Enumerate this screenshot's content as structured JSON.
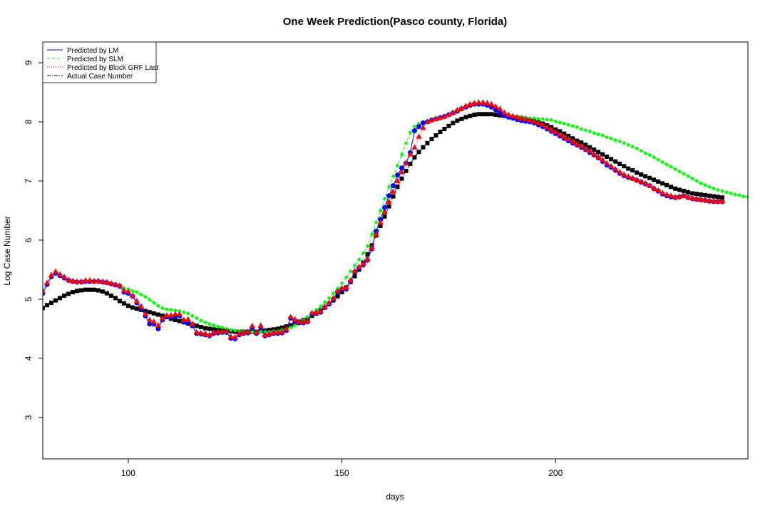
{
  "chart_data": {
    "type": "scatter",
    "title": "One Week Prediction(Pasco county, Florida)",
    "xlabel": "days",
    "ylabel": "Log Case Number",
    "xlim": [
      80,
      245
    ],
    "ylim": [
      2.3,
      9.35
    ],
    "xticks": [
      100,
      150,
      200
    ],
    "yticks": [
      3,
      4,
      5,
      6,
      7,
      8,
      9
    ],
    "grid": false,
    "legend_position": "top-left",
    "colors": {
      "lm": "#0000ff",
      "slm": "#00ff00",
      "grf": "#ff0000",
      "actual": "#000000"
    },
    "legend": [
      {
        "label": "Predicted by LM",
        "color": "#0000ff",
        "line": "solid"
      },
      {
        "label": "Predicted by SLM",
        "color": "#00ff00",
        "line": "dashed"
      },
      {
        "label": "Predicted by Block GRF Last",
        "color": "#ff0000",
        "line": "dotted"
      },
      {
        "label": "Actual Case Number",
        "color": "#000000",
        "line": "dotdash"
      }
    ],
    "x_start": 80,
    "series": [
      {
        "name": "Actual Case Number",
        "marker": "square",
        "color": "#000000",
        "y": [
          4.85,
          4.9,
          4.94,
          4.98,
          5.02,
          5.06,
          5.09,
          5.12,
          5.14,
          5.15,
          5.16,
          5.16,
          5.16,
          5.15,
          5.13,
          5.1,
          5.06,
          5.02,
          4.97,
          4.93,
          4.89,
          4.86,
          4.84,
          4.82,
          4.8,
          4.78,
          4.76,
          4.74,
          4.72,
          4.7,
          4.67,
          4.65,
          4.63,
          4.61,
          4.59,
          4.57,
          4.55,
          4.53,
          4.51,
          4.5,
          4.49,
          4.48,
          4.47,
          4.46,
          4.46,
          4.45,
          4.45,
          4.45,
          4.45,
          4.45,
          4.45,
          4.46,
          4.47,
          4.48,
          4.49,
          4.5,
          4.52,
          4.54,
          4.56,
          4.59,
          4.62,
          4.65,
          4.68,
          4.72,
          4.76,
          4.81,
          4.86,
          4.92,
          4.98,
          5.05,
          5.12,
          5.2,
          5.29,
          5.39,
          5.5,
          5.62,
          5.76,
          5.91,
          6.08,
          6.24,
          6.4,
          6.57,
          6.74,
          6.9,
          7.04,
          7.17,
          7.29,
          7.4,
          7.49,
          7.57,
          7.64,
          7.71,
          7.77,
          7.83,
          7.88,
          7.93,
          7.98,
          8.02,
          8.05,
          8.08,
          8.1,
          8.12,
          8.13,
          8.13,
          8.13,
          8.13,
          8.12,
          8.11,
          8.1,
          8.09,
          8.08,
          8.07,
          8.06,
          8.05,
          8.03,
          8.01,
          7.99,
          7.97,
          7.94,
          7.91,
          7.87,
          7.84,
          7.8,
          7.76,
          7.72,
          7.68,
          7.65,
          7.61,
          7.57,
          7.53,
          7.49,
          7.45,
          7.41,
          7.37,
          7.33,
          7.29,
          7.25,
          7.21,
          7.18,
          7.14,
          7.11,
          7.08,
          7.05,
          7.02,
          6.99,
          6.96,
          6.93,
          6.9,
          6.87,
          6.85,
          6.83,
          6.81,
          6.79,
          6.78,
          6.77,
          6.76,
          6.75,
          6.74,
          6.73,
          6.72
        ]
      },
      {
        "name": "Predicted by SLM",
        "marker": "diamond",
        "color": "#00ff00",
        "y": [
          5.1,
          5.25,
          5.38,
          5.44,
          5.4,
          5.36,
          5.32,
          5.3,
          5.29,
          5.29,
          5.3,
          5.3,
          5.3,
          5.3,
          5.29,
          5.28,
          5.26,
          5.24,
          5.22,
          5.19,
          5.17,
          5.14,
          5.12,
          5.08,
          5.04,
          4.99,
          4.94,
          4.89,
          4.85,
          4.83,
          4.82,
          4.81,
          4.8,
          4.78,
          4.76,
          4.72,
          4.68,
          4.64,
          4.61,
          4.58,
          4.56,
          4.54,
          4.52,
          4.5,
          4.48,
          4.47,
          4.46,
          4.46,
          4.45,
          4.45,
          4.45,
          4.45,
          4.45,
          4.45,
          4.46,
          4.46,
          4.48,
          4.5,
          4.52,
          4.56,
          4.6,
          4.65,
          4.7,
          4.76,
          4.82,
          4.88,
          4.95,
          5.02,
          5.1,
          5.18,
          5.27,
          5.37,
          5.47,
          5.57,
          5.67,
          5.78,
          5.9,
          6.1,
          6.3,
          6.5,
          6.7,
          6.9,
          7.08,
          7.26,
          7.45,
          7.64,
          7.82,
          7.92,
          7.97,
          8.0,
          8.02,
          8.03,
          8.05,
          8.07,
          8.09,
          8.12,
          8.15,
          8.18,
          8.22,
          8.25,
          8.28,
          8.29,
          8.3,
          8.3,
          8.28,
          8.25,
          8.2,
          8.15,
          8.11,
          8.1,
          8.1,
          8.09,
          8.08,
          8.07,
          8.06,
          8.06,
          8.05,
          8.05,
          8.04,
          8.03,
          8.01,
          7.99,
          7.97,
          7.95,
          7.93,
          7.91,
          7.88,
          7.86,
          7.84,
          7.81,
          7.79,
          7.77,
          7.74,
          7.72,
          7.69,
          7.67,
          7.64,
          7.61,
          7.58,
          7.55,
          7.51,
          7.47,
          7.44,
          7.4,
          7.36,
          7.32,
          7.28,
          7.24,
          7.2,
          7.16,
          7.12,
          7.08,
          7.04,
          7.0,
          6.96,
          6.93,
          6.9,
          6.87,
          6.85,
          6.83,
          6.81,
          6.79,
          6.77,
          6.76,
          6.74,
          6.73
        ]
      },
      {
        "name": "Predicted by LM",
        "marker": "circle",
        "color": "#0000ff",
        "y": [
          5.1,
          5.25,
          5.38,
          5.44,
          5.4,
          5.36,
          5.32,
          5.3,
          5.29,
          5.29,
          5.3,
          5.3,
          5.3,
          5.3,
          5.29,
          5.28,
          5.26,
          5.24,
          5.22,
          5.12,
          5.1,
          5.05,
          4.94,
          4.85,
          4.72,
          4.58,
          4.58,
          4.5,
          4.65,
          4.7,
          4.7,
          4.72,
          4.72,
          4.62,
          4.62,
          4.55,
          4.42,
          4.41,
          4.4,
          4.38,
          4.42,
          4.43,
          4.44,
          4.44,
          4.34,
          4.33,
          4.4,
          4.42,
          4.43,
          4.52,
          4.42,
          4.53,
          4.38,
          4.4,
          4.42,
          4.42,
          4.43,
          4.47,
          4.68,
          4.64,
          4.6,
          4.6,
          4.62,
          4.75,
          4.76,
          4.78,
          4.86,
          4.92,
          5.0,
          5.12,
          5.17,
          5.17,
          5.3,
          5.46,
          5.53,
          5.58,
          5.66,
          5.85,
          6.15,
          6.35,
          6.55,
          6.75,
          6.92,
          7.1,
          7.22,
          7.3,
          7.48,
          7.85,
          7.92,
          7.98,
          8.0,
          8.03,
          8.05,
          8.07,
          8.09,
          8.12,
          8.15,
          8.18,
          8.22,
          8.25,
          8.28,
          8.3,
          8.3,
          8.3,
          8.28,
          8.25,
          8.2,
          8.15,
          8.11,
          8.08,
          8.06,
          8.04,
          8.02,
          8.01,
          8.0,
          7.98,
          7.95,
          7.92,
          7.88,
          7.84,
          7.8,
          7.76,
          7.72,
          7.68,
          7.64,
          7.61,
          7.57,
          7.53,
          7.48,
          7.44,
          7.39,
          7.33,
          7.27,
          7.23,
          7.18,
          7.13,
          7.09,
          7.06,
          7.04,
          7.01,
          6.98,
          6.95,
          6.92,
          6.87,
          6.83,
          6.78,
          6.75,
          6.73,
          6.72,
          6.73,
          6.75,
          6.72,
          6.7,
          6.69,
          6.68,
          6.67,
          6.66,
          6.65,
          6.65,
          6.65
        ]
      },
      {
        "name": "Predicted by Block GRF Last",
        "marker": "triangle",
        "color": "#ff0000",
        "y": [
          5.13,
          5.28,
          5.41,
          5.47,
          5.42,
          5.38,
          5.33,
          5.31,
          5.3,
          5.3,
          5.32,
          5.32,
          5.31,
          5.31,
          5.3,
          5.29,
          5.27,
          5.25,
          5.23,
          5.15,
          5.13,
          5.06,
          4.97,
          4.88,
          4.75,
          4.65,
          4.62,
          4.56,
          4.68,
          4.73,
          4.73,
          4.75,
          4.75,
          4.65,
          4.66,
          4.58,
          4.44,
          4.43,
          4.42,
          4.4,
          4.44,
          4.45,
          4.46,
          4.46,
          4.37,
          4.36,
          4.42,
          4.44,
          4.45,
          4.55,
          4.44,
          4.56,
          4.4,
          4.42,
          4.44,
          4.44,
          4.45,
          4.5,
          4.7,
          4.66,
          4.62,
          4.62,
          4.64,
          4.77,
          4.78,
          4.8,
          4.88,
          4.94,
          5.02,
          5.14,
          5.19,
          5.2,
          5.32,
          5.48,
          5.55,
          5.6,
          5.68,
          5.87,
          6.1,
          6.3,
          6.48,
          6.65,
          6.82,
          7.0,
          7.15,
          7.3,
          7.45,
          7.57,
          7.75,
          7.9,
          8.0,
          8.03,
          8.05,
          8.07,
          8.09,
          8.12,
          8.16,
          8.2,
          8.23,
          8.27,
          8.3,
          8.32,
          8.33,
          8.33,
          8.32,
          8.3,
          8.26,
          8.22,
          8.16,
          8.12,
          8.1,
          8.08,
          8.06,
          8.05,
          8.03,
          8.01,
          7.98,
          7.95,
          7.91,
          7.87,
          7.83,
          7.79,
          7.75,
          7.71,
          7.67,
          7.63,
          7.59,
          7.55,
          7.51,
          7.46,
          7.41,
          7.36,
          7.3,
          7.25,
          7.2,
          7.15,
          7.11,
          7.08,
          7.05,
          7.02,
          6.99,
          6.96,
          6.92,
          6.88,
          6.84,
          6.8,
          6.77,
          6.75,
          6.73,
          6.74,
          6.76,
          6.73,
          6.71,
          6.7,
          6.69,
          6.68,
          6.67,
          6.66,
          6.66,
          6.66
        ]
      }
    ]
  }
}
